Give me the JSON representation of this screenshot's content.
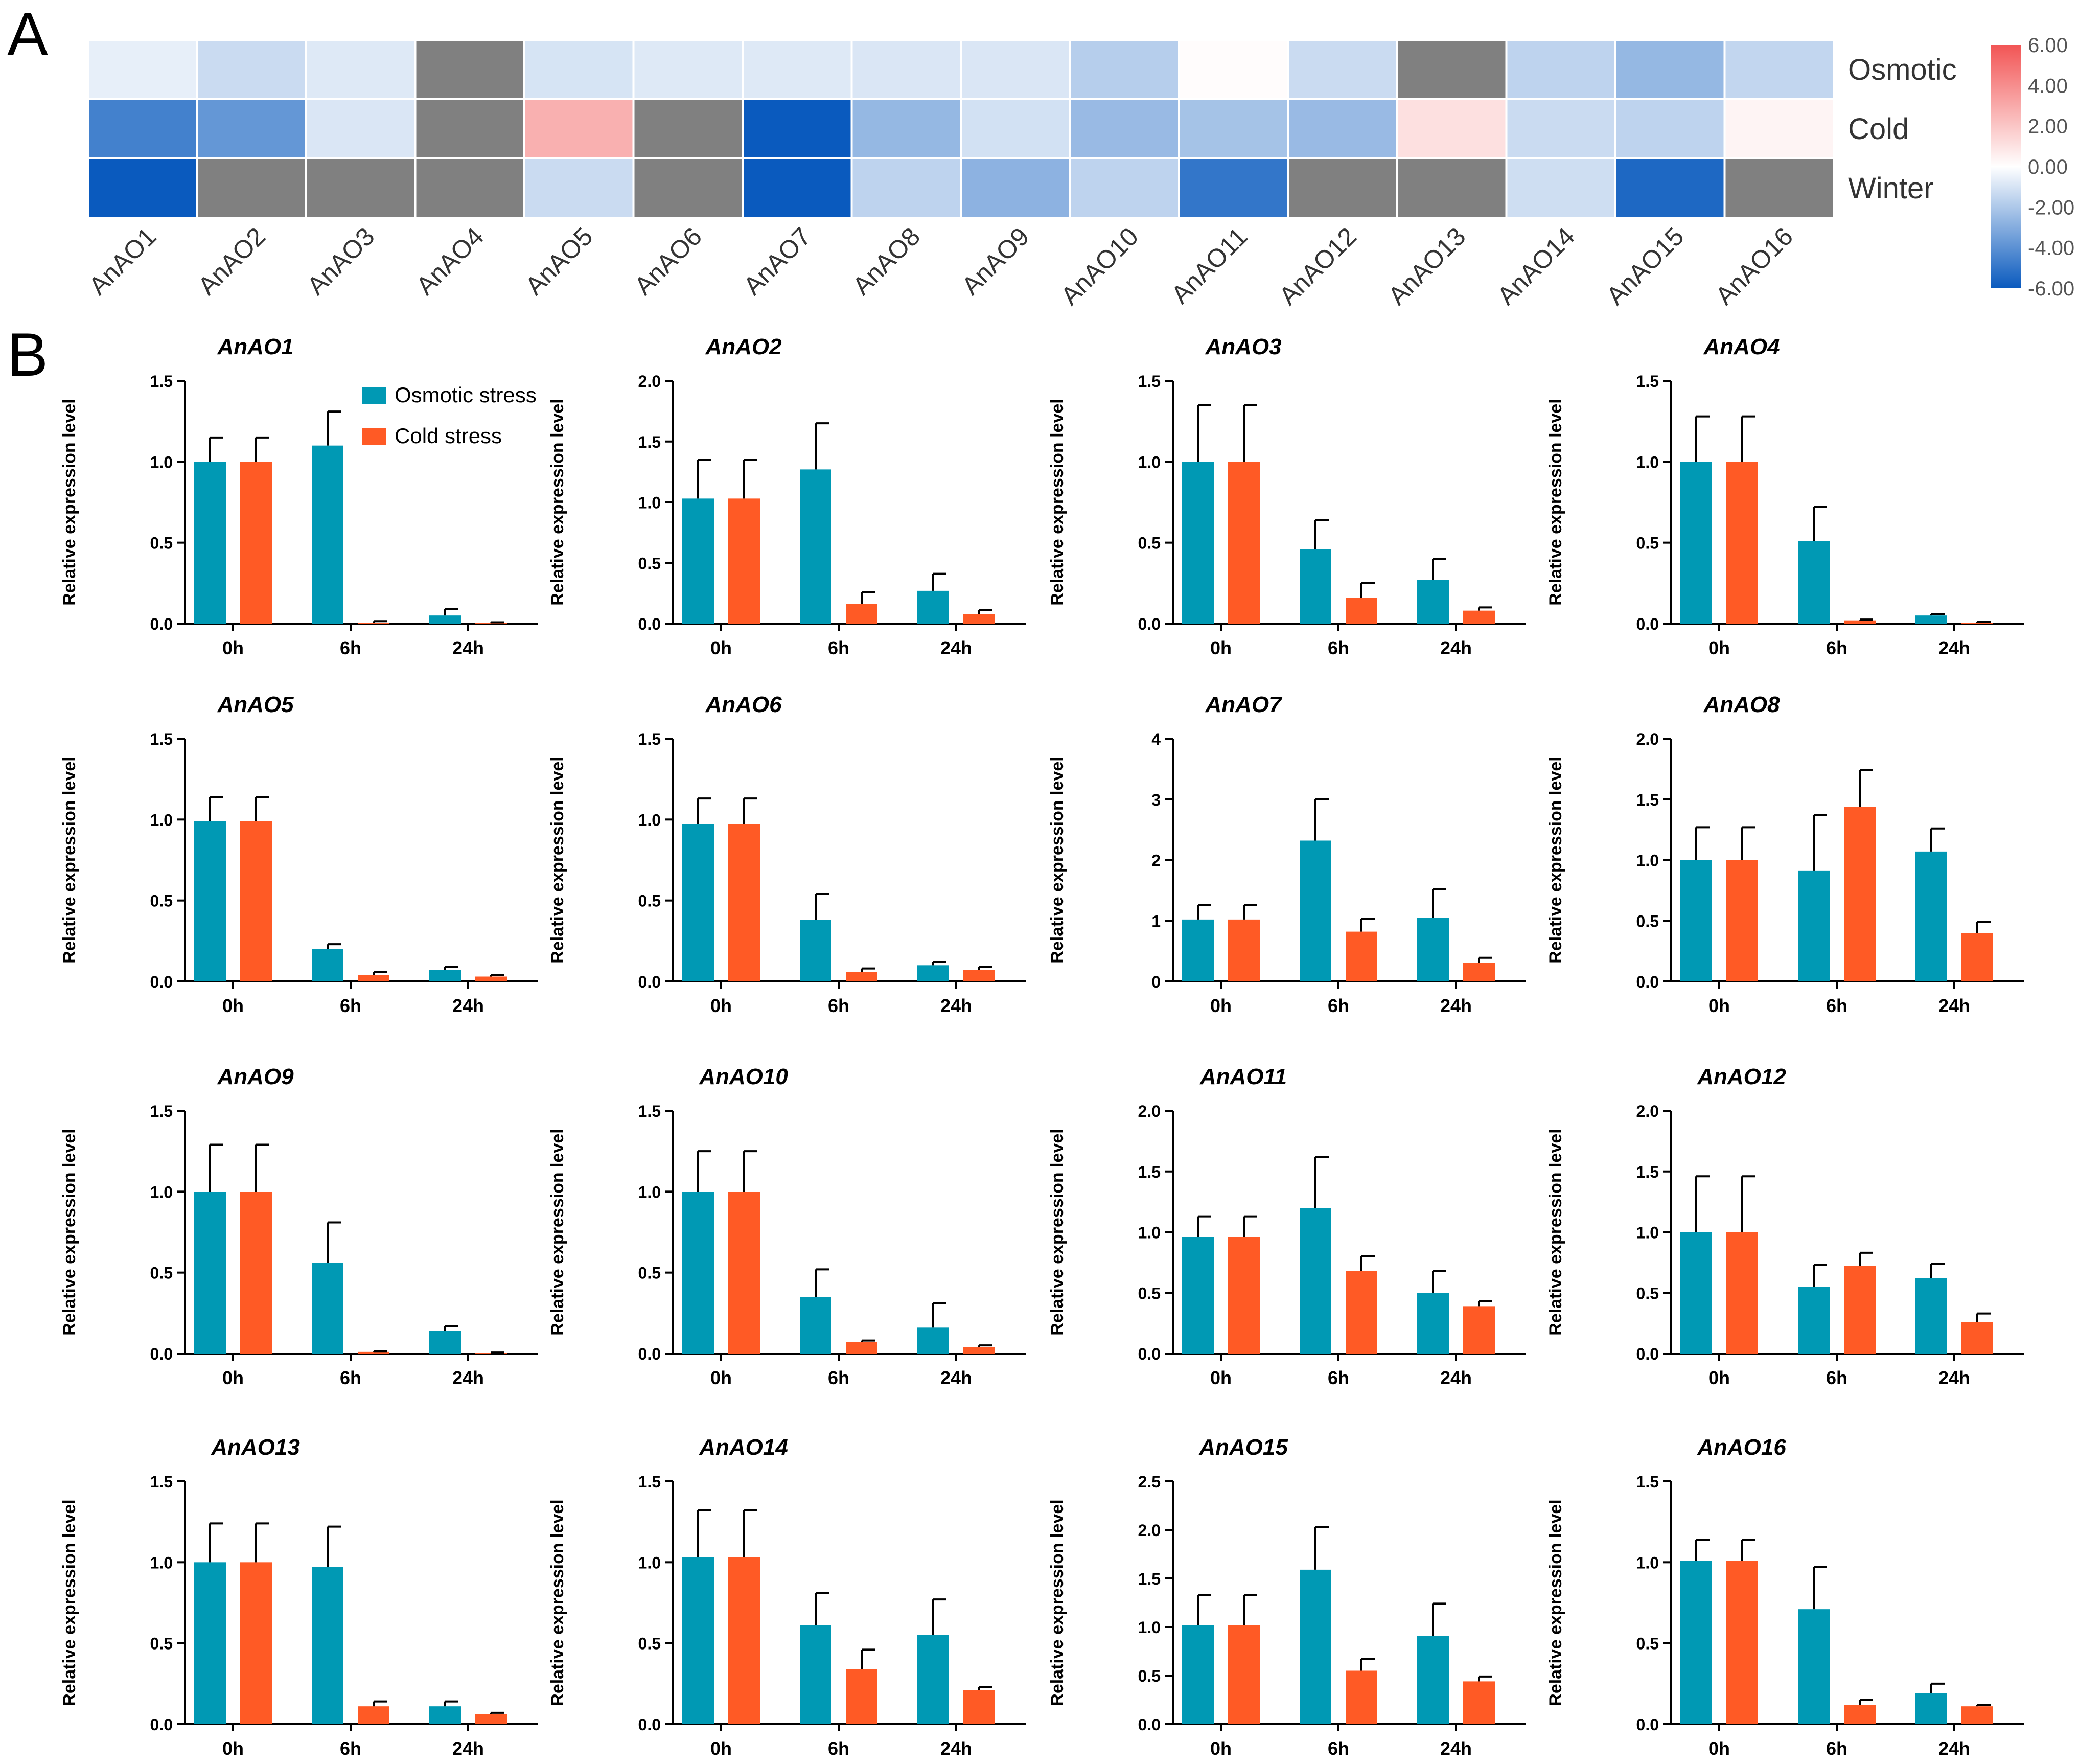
{
  "panel_labels": {
    "a": "A",
    "b": "B"
  },
  "colors": {
    "osmotic": "#0099B4",
    "cold": "#FF5A25",
    "missing": "#808080",
    "scale_high": "#F25555",
    "scale_mid": "#FFFFFF",
    "scale_low": "#0A5ABE"
  },
  "heatmap": {
    "genes": [
      "AnAO1",
      "AnAO2",
      "AnAO3",
      "AnAO4",
      "AnAO5",
      "AnAO6",
      "AnAO7",
      "AnAO8",
      "AnAO9",
      "AnAO10",
      "AnAO11",
      "AnAO12",
      "AnAO13",
      "AnAO14",
      "AnAO15",
      "AnAO16"
    ],
    "rows": [
      "Osmotic",
      "Cold",
      "Winter"
    ],
    "values": [
      [
        -0.6,
        -1.3,
        -0.8,
        null,
        -1.0,
        -0.8,
        -0.8,
        -0.9,
        -0.9,
        -1.8,
        0.1,
        -1.3,
        null,
        -1.6,
        -2.6,
        -1.5
      ],
      [
        -4.6,
        -3.8,
        -0.9,
        null,
        2.8,
        null,
        -6.0,
        -2.6,
        -1.1,
        -2.5,
        -2.2,
        -2.5,
        1.1,
        -1.3,
        -1.6,
        0.4
      ],
      [
        -6.0,
        null,
        null,
        null,
        -1.3,
        null,
        -6.0,
        -1.6,
        -2.8,
        -1.6,
        -5.0,
        null,
        null,
        -1.2,
        -5.5,
        null
      ]
    ],
    "scale": {
      "min": -6,
      "max": 6,
      "ticks": [
        "6.00",
        "4.00",
        "2.00",
        "0.00",
        "-2.00",
        "-4.00",
        "-6.00"
      ]
    }
  },
  "legend": {
    "osmotic": "Osmotic stress",
    "cold": "Cold stress"
  },
  "ylabel": "Relative expression level",
  "timepoints": [
    "0h",
    "6h",
    "24h"
  ],
  "chart_data": [
    {
      "type": "bar",
      "title": "AnAO1",
      "categories": [
        "0h",
        "6h",
        "24h"
      ],
      "ylim": [
        0,
        1.5
      ],
      "yticks": [
        "0.0",
        "0.5",
        "1.0",
        "1.5"
      ],
      "series": [
        {
          "name": "Osmotic stress",
          "values": [
            1.0,
            1.1,
            0.05
          ],
          "errors": [
            0.15,
            0.21,
            0.04
          ]
        },
        {
          "name": "Cold stress",
          "values": [
            1.0,
            0.005,
            0.003
          ],
          "errors": [
            0.15,
            0.01,
            0.005
          ]
        }
      ]
    },
    {
      "type": "bar",
      "title": "AnAO2",
      "categories": [
        "0h",
        "6h",
        "24h"
      ],
      "ylim": [
        0,
        2.0
      ],
      "yticks": [
        "0.0",
        "0.5",
        "1.0",
        "1.5",
        "2.0"
      ],
      "series": [
        {
          "name": "Osmotic stress",
          "values": [
            1.03,
            1.27,
            0.27
          ],
          "errors": [
            0.32,
            0.38,
            0.14
          ]
        },
        {
          "name": "Cold stress",
          "values": [
            1.03,
            0.16,
            0.08
          ],
          "errors": [
            0.32,
            0.1,
            0.03
          ]
        }
      ]
    },
    {
      "type": "bar",
      "title": "AnAO3",
      "categories": [
        "0h",
        "6h",
        "24h"
      ],
      "ylim": [
        0,
        1.5
      ],
      "yticks": [
        "0.0",
        "0.5",
        "1.0",
        "1.5"
      ],
      "series": [
        {
          "name": "Osmotic stress",
          "values": [
            1.0,
            0.46,
            0.27
          ],
          "errors": [
            0.35,
            0.18,
            0.13
          ]
        },
        {
          "name": "Cold stress",
          "values": [
            1.0,
            0.16,
            0.08
          ],
          "errors": [
            0.35,
            0.09,
            0.02
          ]
        }
      ]
    },
    {
      "type": "bar",
      "title": "AnAO4",
      "categories": [
        "0h",
        "6h",
        "24h"
      ],
      "ylim": [
        0,
        1.5
      ],
      "yticks": [
        "0.0",
        "0.5",
        "1.0",
        "1.5"
      ],
      "series": [
        {
          "name": "Osmotic stress",
          "values": [
            1.0,
            0.51,
            0.05
          ],
          "errors": [
            0.28,
            0.21,
            0.01
          ]
        },
        {
          "name": "Cold stress",
          "values": [
            1.0,
            0.02,
            0.005
          ],
          "errors": [
            0.28,
            0.005,
            0.005
          ]
        }
      ]
    },
    {
      "type": "bar",
      "title": "AnAO5",
      "categories": [
        "0h",
        "6h",
        "24h"
      ],
      "ylim": [
        0,
        1.5
      ],
      "yticks": [
        "0.0",
        "0.5",
        "1.0",
        "1.5"
      ],
      "series": [
        {
          "name": "Osmotic stress",
          "values": [
            0.99,
            0.2,
            0.07
          ],
          "errors": [
            0.15,
            0.03,
            0.02
          ]
        },
        {
          "name": "Cold stress",
          "values": [
            0.99,
            0.04,
            0.03
          ],
          "errors": [
            0.15,
            0.02,
            0.01
          ]
        }
      ]
    },
    {
      "type": "bar",
      "title": "AnAO6",
      "categories": [
        "0h",
        "6h",
        "24h"
      ],
      "ylim": [
        0,
        1.5
      ],
      "yticks": [
        "0.0",
        "0.5",
        "1.0",
        "1.5"
      ],
      "series": [
        {
          "name": "Osmotic stress",
          "values": [
            0.97,
            0.38,
            0.1
          ],
          "errors": [
            0.16,
            0.16,
            0.02
          ]
        },
        {
          "name": "Cold stress",
          "values": [
            0.97,
            0.06,
            0.07
          ],
          "errors": [
            0.16,
            0.02,
            0.02
          ]
        }
      ]
    },
    {
      "type": "bar",
      "title": "AnAO7",
      "categories": [
        "0h",
        "6h",
        "24h"
      ],
      "ylim": [
        0,
        4
      ],
      "yticks": [
        "0",
        "1",
        "2",
        "3",
        "4"
      ],
      "series": [
        {
          "name": "Osmotic stress",
          "values": [
            1.02,
            2.32,
            1.05
          ],
          "errors": [
            0.24,
            0.68,
            0.47
          ]
        },
        {
          "name": "Cold stress",
          "values": [
            1.02,
            0.82,
            0.31
          ],
          "errors": [
            0.24,
            0.21,
            0.08
          ]
        }
      ]
    },
    {
      "type": "bar",
      "title": "AnAO8",
      "categories": [
        "0h",
        "6h",
        "24h"
      ],
      "ylim": [
        0,
        2.0
      ],
      "yticks": [
        "0.0",
        "0.5",
        "1.0",
        "1.5",
        "2.0"
      ],
      "series": [
        {
          "name": "Osmotic stress",
          "values": [
            1.0,
            0.91,
            1.07
          ],
          "errors": [
            0.27,
            0.46,
            0.19
          ]
        },
        {
          "name": "Cold stress",
          "values": [
            1.0,
            1.44,
            0.4
          ],
          "errors": [
            0.27,
            0.3,
            0.09
          ]
        }
      ]
    },
    {
      "type": "bar",
      "title": "AnAO9",
      "categories": [
        "0h",
        "6h",
        "24h"
      ],
      "ylim": [
        0,
        1.5
      ],
      "yticks": [
        "0.0",
        "0.5",
        "1.0",
        "1.5"
      ],
      "series": [
        {
          "name": "Osmotic stress",
          "values": [
            1.0,
            0.56,
            0.14
          ],
          "errors": [
            0.29,
            0.25,
            0.03
          ]
        },
        {
          "name": "Cold stress",
          "values": [
            1.0,
            0.01,
            0.003
          ],
          "errors": [
            0.29,
            0.005,
            0.003
          ]
        }
      ]
    },
    {
      "type": "bar",
      "title": "AnAO10",
      "categories": [
        "0h",
        "6h",
        "24h"
      ],
      "ylim": [
        0,
        1.5
      ],
      "yticks": [
        "0.0",
        "0.5",
        "1.0",
        "1.5"
      ],
      "series": [
        {
          "name": "Osmotic stress",
          "values": [
            1.0,
            0.35,
            0.16
          ],
          "errors": [
            0.25,
            0.17,
            0.15
          ]
        },
        {
          "name": "Cold stress",
          "values": [
            1.0,
            0.07,
            0.04
          ],
          "errors": [
            0.25,
            0.01,
            0.01
          ]
        }
      ]
    },
    {
      "type": "bar",
      "title": "AnAO11",
      "categories": [
        "0h",
        "6h",
        "24h"
      ],
      "ylim": [
        0,
        2.0
      ],
      "yticks": [
        "0.0",
        "0.5",
        "1.0",
        "1.5",
        "2.0"
      ],
      "series": [
        {
          "name": "Osmotic stress",
          "values": [
            0.96,
            1.2,
            0.5
          ],
          "errors": [
            0.17,
            0.42,
            0.18
          ]
        },
        {
          "name": "Cold stress",
          "values": [
            0.96,
            0.68,
            0.39
          ],
          "errors": [
            0.17,
            0.12,
            0.04
          ]
        }
      ]
    },
    {
      "type": "bar",
      "title": "AnAO12",
      "categories": [
        "0h",
        "6h",
        "24h"
      ],
      "ylim": [
        0,
        2.0
      ],
      "yticks": [
        "0.0",
        "0.5",
        "1.0",
        "1.5",
        "2.0"
      ],
      "series": [
        {
          "name": "Osmotic stress",
          "values": [
            1.0,
            0.55,
            0.62
          ],
          "errors": [
            0.46,
            0.18,
            0.12
          ]
        },
        {
          "name": "Cold stress",
          "values": [
            1.0,
            0.72,
            0.26
          ],
          "errors": [
            0.46,
            0.11,
            0.07
          ]
        }
      ]
    },
    {
      "type": "bar",
      "title": "AnAO13",
      "categories": [
        "0h",
        "6h",
        "24h"
      ],
      "ylim": [
        0,
        1.5
      ],
      "yticks": [
        "0.0",
        "0.5",
        "1.0",
        "1.5"
      ],
      "series": [
        {
          "name": "Osmotic stress",
          "values": [
            1.0,
            0.97,
            0.11
          ],
          "errors": [
            0.24,
            0.25,
            0.03
          ]
        },
        {
          "name": "Cold stress",
          "values": [
            1.0,
            0.11,
            0.06
          ],
          "errors": [
            0.24,
            0.03,
            0.01
          ]
        }
      ]
    },
    {
      "type": "bar",
      "title": "AnAO14",
      "categories": [
        "0h",
        "6h",
        "24h"
      ],
      "ylim": [
        0,
        1.5
      ],
      "yticks": [
        "0.0",
        "0.5",
        "1.0",
        "1.5"
      ],
      "series": [
        {
          "name": "Osmotic stress",
          "values": [
            1.03,
            0.61,
            0.55
          ],
          "errors": [
            0.29,
            0.2,
            0.22
          ]
        },
        {
          "name": "Cold stress",
          "values": [
            1.03,
            0.34,
            0.21
          ],
          "errors": [
            0.29,
            0.12,
            0.02
          ]
        }
      ]
    },
    {
      "type": "bar",
      "title": "AnAO15",
      "categories": [
        "0h",
        "6h",
        "24h"
      ],
      "ylim": [
        0,
        2.5
      ],
      "yticks": [
        "0.0",
        "0.5",
        "1.0",
        "1.5",
        "2.0",
        "2.5"
      ],
      "series": [
        {
          "name": "Osmotic stress",
          "values": [
            1.02,
            1.59,
            0.91
          ],
          "errors": [
            0.31,
            0.44,
            0.33
          ]
        },
        {
          "name": "Cold stress",
          "values": [
            1.02,
            0.55,
            0.44
          ],
          "errors": [
            0.31,
            0.12,
            0.05
          ]
        }
      ]
    },
    {
      "type": "bar",
      "title": "AnAO16",
      "categories": [
        "0h",
        "6h",
        "24h"
      ],
      "ylim": [
        0,
        1.5
      ],
      "yticks": [
        "0.0",
        "0.5",
        "1.0",
        "1.5"
      ],
      "series": [
        {
          "name": "Osmotic stress",
          "values": [
            1.01,
            0.71,
            0.19
          ],
          "errors": [
            0.13,
            0.26,
            0.06
          ]
        },
        {
          "name": "Cold stress",
          "values": [
            1.01,
            0.12,
            0.11
          ],
          "errors": [
            0.13,
            0.03,
            0.01
          ]
        }
      ]
    }
  ]
}
